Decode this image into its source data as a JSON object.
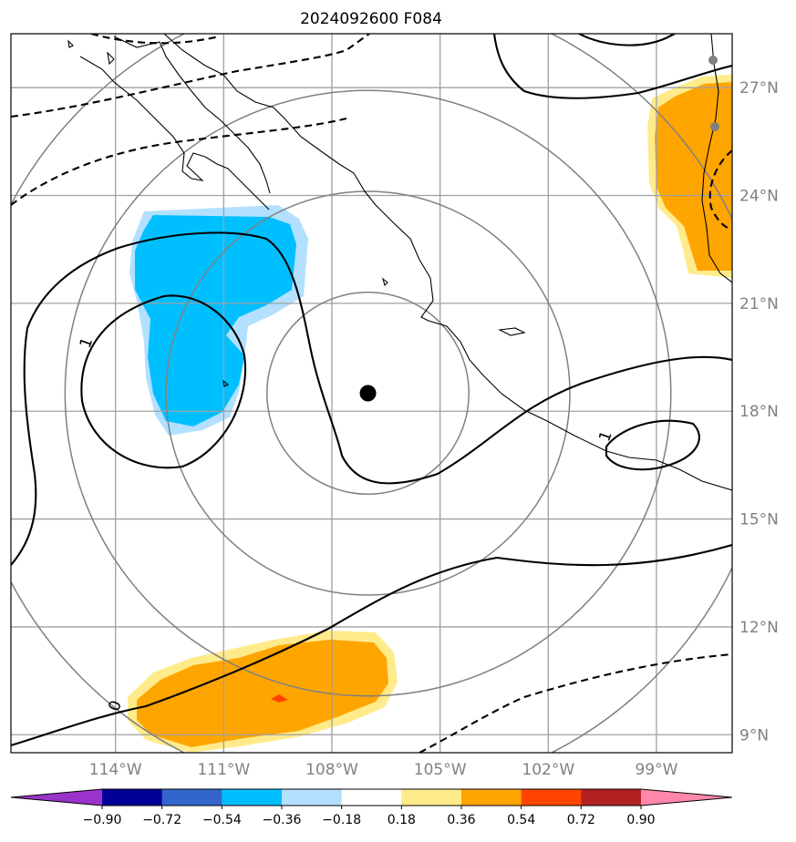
{
  "chart_data": {
    "type": "contour_map",
    "title": "2024092600 F084",
    "lon_tick_labels": [
      "114°W",
      "111°W",
      "108°W",
      "105°W",
      "102°W",
      "99°W"
    ],
    "lon_ticks": [
      -114,
      -111,
      -108,
      -105,
      -102,
      -99
    ],
    "lat_tick_labels": [
      "27°N",
      "24°N",
      "21°N",
      "18°N",
      "15°N",
      "12°N",
      "9°N"
    ],
    "lat_ticks": [
      27,
      24,
      21,
      18,
      15,
      12,
      9
    ],
    "xlim": [
      -116.9,
      -96.9
    ],
    "ylim": [
      8.5,
      28.5
    ],
    "grid": true,
    "center": {
      "lon": -107.0,
      "lat": 18.5
    },
    "range_rings_deg": [
      2.8,
      5.6,
      8.4,
      11.2
    ],
    "colorbar": {
      "ticks": [
        "−0.90",
        "−0.72",
        "−0.54",
        "−0.36",
        "−0.18",
        "0.18",
        "0.36",
        "0.54",
        "0.72",
        "0.90"
      ],
      "colors": [
        "#9933cc",
        "#000099",
        "#3366cc",
        "#00bfff",
        "#b3e0ff",
        "#ffffff",
        "#ffeb8a",
        "#ffa500",
        "#ff4500",
        "#b22222",
        "#ff88aa"
      ],
      "extend": "both"
    },
    "contour_labels": [
      {
        "text": "1",
        "lon": -114.8,
        "lat": 19.9
      },
      {
        "text": "1",
        "lon": -100.4,
        "lat": 17.3
      },
      {
        "text": "0",
        "lon": -114.0,
        "lat": 9.8
      }
    ],
    "shaded_regions": [
      {
        "name": "negative-anomaly-west",
        "level": "-0.54 to -0.36"
      },
      {
        "name": "positive-anomaly-south",
        "level": "0.36 to 0.54"
      },
      {
        "name": "positive-anomaly-northeast",
        "level": "0.36 to 0.54"
      }
    ]
  }
}
